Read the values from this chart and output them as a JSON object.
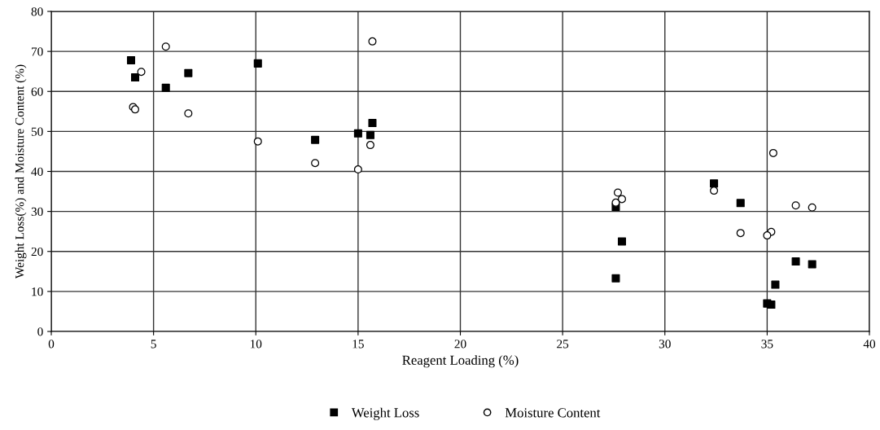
{
  "chart_data": {
    "type": "scatter",
    "xlabel": "Reagent Loading (%)",
    "ylabel": "Weight Loss(%) and Moisture Content (%)",
    "xlim": [
      0,
      40
    ],
    "xticks": [
      0,
      5,
      10,
      15,
      20,
      25,
      30,
      35,
      40
    ],
    "ylim": [
      0,
      80
    ],
    "yticks": [
      0,
      10,
      20,
      30,
      40,
      50,
      60,
      70,
      80
    ],
    "grid": true,
    "legend": "bottom",
    "series": [
      {
        "name": "Weight Loss",
        "color": "#000000",
        "marker": "square",
        "x": [
          3.9,
          4.1,
          5.6,
          6.7,
          10.1,
          12.9,
          15.0,
          15.6,
          15.7,
          27.6,
          27.9,
          27.6,
          32.4,
          33.7,
          36.4,
          37.2,
          35.4,
          35.0,
          35.2
        ],
        "values": [
          67.8,
          63.5,
          60.9,
          64.6,
          67.0,
          47.9,
          49.5,
          49.1,
          52.1,
          31.1,
          22.5,
          13.3,
          37.0,
          32.1,
          17.5,
          16.8,
          11.7,
          7.0,
          6.7
        ]
      },
      {
        "name": "Moisture Content",
        "color": "#000000",
        "marker": "circle",
        "x": [
          5.6,
          4.4,
          4.0,
          4.1,
          6.7,
          10.1,
          15.7,
          15.6,
          12.9,
          15.0,
          27.7,
          27.9,
          27.6,
          32.4,
          33.7,
          36.4,
          37.2,
          35.2,
          35.0,
          35.3
        ],
        "values": [
          71.2,
          64.9,
          56.1,
          55.5,
          54.5,
          47.5,
          72.5,
          46.6,
          42.1,
          40.5,
          34.7,
          33.1,
          32.2,
          35.2,
          24.6,
          31.5,
          31.0,
          24.9,
          24.0,
          44.6
        ]
      }
    ]
  }
}
